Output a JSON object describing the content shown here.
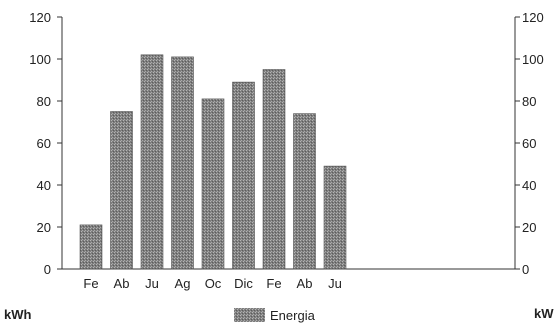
{
  "chart_data": {
    "type": "bar",
    "categories": [
      "Fe",
      "Ab",
      "Ju",
      "Ag",
      "Oc",
      "Dic",
      "Fe",
      "Ab",
      "Ju"
    ],
    "series": [
      {
        "name": "Energia",
        "values": [
          21,
          75,
          102,
          101,
          81,
          89,
          95,
          74,
          49
        ]
      }
    ],
    "ylim": [
      0,
      120
    ],
    "y_ticks": [
      0,
      20,
      40,
      60,
      80,
      100,
      120
    ],
    "y2lim": [
      0,
      120
    ],
    "y2_ticks": [
      0,
      20,
      40,
      60,
      80,
      100,
      120
    ],
    "ylabel": "kWh",
    "y2label": "kW",
    "grid": false,
    "legend_position": "bottom-center",
    "bar_color": "#8a8a8a"
  }
}
